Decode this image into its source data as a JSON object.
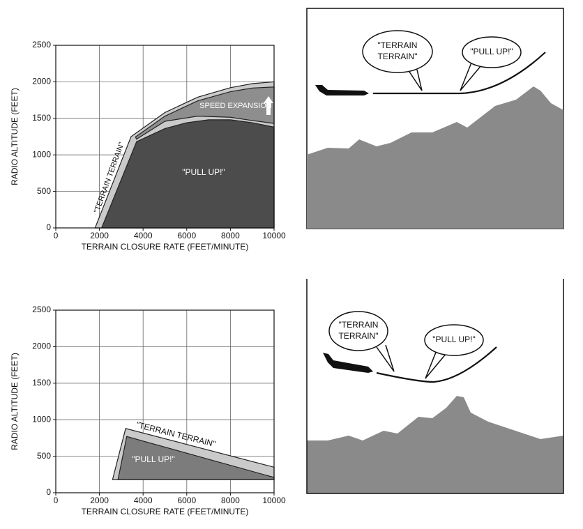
{
  "chart_data": [
    {
      "type": "area",
      "y_label": "RADIO ALTITUDE (FEET)",
      "x_label": "TERRAIN CLOSURE RATE (FEET/MINUTE)",
      "xlim": [
        0,
        10000
      ],
      "xticks": [
        0,
        2000,
        4000,
        6000,
        8000,
        10000
      ],
      "ylim": [
        0,
        2500
      ],
      "yticks": [
        0,
        500,
        1000,
        1500,
        2000,
        2500
      ],
      "grid": true,
      "series": [
        {
          "name": "\"TERRAIN TERRAIN\"",
          "color": "#cacaca",
          "x": [
            1800,
            3450,
            5000,
            6500,
            8000,
            9000,
            10000,
            10000
          ],
          "values": [
            0,
            1250,
            1580,
            1790,
            1920,
            1975,
            2000,
            0
          ]
        },
        {
          "name": "SPEED EXPANSION",
          "color": "#8e8e8e",
          "x": [
            3650,
            5000,
            6500,
            8000,
            9000,
            10000,
            10000,
            9000,
            8000,
            6500,
            5000,
            3700
          ],
          "values": [
            1245,
            1530,
            1740,
            1865,
            1915,
            1930,
            1430,
            1470,
            1515,
            1530,
            1460,
            1215
          ]
        },
        {
          "name": "\"PULL UP!\"",
          "color": "#4c4c4c",
          "x": [
            2100,
            3700,
            5000,
            6000,
            7000,
            8000,
            9000,
            10000,
            10000
          ],
          "values": [
            0,
            1180,
            1360,
            1440,
            1480,
            1480,
            1440,
            1380,
            0
          ]
        }
      ]
    },
    {
      "type": "area",
      "y_label": "RADIO ALTITUDE (FEET)",
      "x_label": "TERRAIN CLOSURE RATE (FEET/MINUTE)",
      "xlim": [
        0,
        10000
      ],
      "xticks": [
        0,
        2000,
        4000,
        6000,
        8000,
        10000
      ],
      "ylim": [
        0,
        2500
      ],
      "yticks": [
        0,
        500,
        1000,
        1500,
        2000,
        2500
      ],
      "grid": true,
      "series": [
        {
          "name": "\"TERRAIN TERRAIN\"",
          "color": "#cacaca",
          "x": [
            2600,
            3200,
            10000,
            10000
          ],
          "values": [
            180,
            880,
            350,
            180
          ]
        },
        {
          "name": "\"PULL UP!\"",
          "color": "#7c7c7c",
          "x": [
            2850,
            3250,
            10000,
            10000
          ],
          "values": [
            180,
            770,
            210,
            180
          ]
        }
      ]
    }
  ],
  "illustrations": [
    {
      "callouts": [
        {
          "lines": [
            "\"TERRAIN",
            "TERRAIN\""
          ]
        },
        {
          "lines": [
            "\"PULL UP!\""
          ]
        }
      ]
    },
    {
      "callouts": [
        {
          "lines": [
            "\"TERRAIN",
            "TERRAIN\""
          ]
        },
        {
          "lines": [
            "\"PULL UP!\""
          ]
        }
      ]
    }
  ]
}
